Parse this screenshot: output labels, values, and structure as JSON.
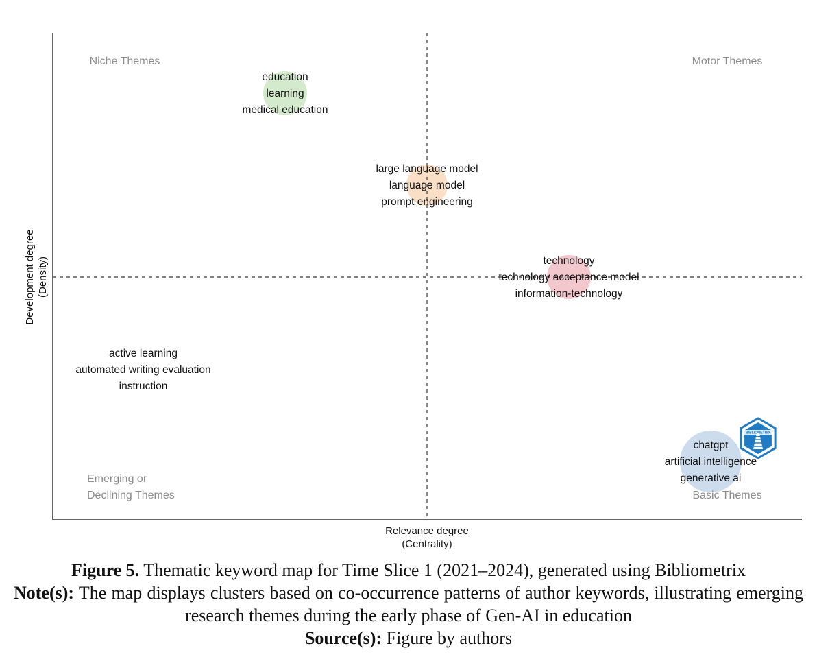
{
  "chart_data": {
    "type": "scatter",
    "subtype": "thematic-map",
    "xlabel": "Relevance degree\n(Centrality)",
    "ylabel": "Development degree\n(Density)",
    "xlim": [
      0,
      1
    ],
    "ylim": [
      0,
      1
    ],
    "x_divider": 0.5,
    "y_divider": 0.5,
    "grid": false,
    "quadrant_labels": {
      "top_left": [
        "Niche Themes"
      ],
      "top_right": [
        "Motor Themes"
      ],
      "bottom_left": [
        "Emerging or",
        "Declining Themes"
      ],
      "bottom_right": [
        "Basic Themes"
      ]
    },
    "clusters": [
      {
        "keywords": [
          "education",
          "learning",
          "medical education"
        ],
        "x": 0.31,
        "y": 0.88,
        "size": 0.5,
        "color": "#cfe8c8"
      },
      {
        "keywords": [
          "large language model",
          "language model",
          "prompt engineering"
        ],
        "x": 0.5,
        "y": 0.69,
        "size": 0.5,
        "color": "#f8dcc0"
      },
      {
        "keywords": [
          "technology",
          "technology acceptance model",
          "information-technology"
        ],
        "x": 0.69,
        "y": 0.5,
        "size": 0.55,
        "color": "#f2c2c6"
      },
      {
        "keywords": [
          "active learning",
          "automated writing evaluation",
          "instruction"
        ],
        "x": 0.12,
        "y": 0.31,
        "size": 0.0,
        "color": "#e0d4f0"
      },
      {
        "keywords": [
          "chatgpt",
          "artificial intelligence",
          "generative ai"
        ],
        "x": 0.88,
        "y": 0.12,
        "size": 1.0,
        "color": "#c8d8ea"
      }
    ],
    "logo": {
      "text": "bibliometrix",
      "color": "#1f7bc4"
    }
  },
  "caption": {
    "figure_label": "Figure 5.",
    "figure_text": " Thematic keyword map for Time Slice 1 (2021–2024), generated using Bibliometrix",
    "note_label": "Note(s):",
    "note_text": " The map displays clusters based on co-occurrence patterns of author keywords, illustrating emerging research themes during the early phase of Gen-AI in education",
    "source_label": "Source(s):",
    "source_text": " Figure by authors"
  }
}
